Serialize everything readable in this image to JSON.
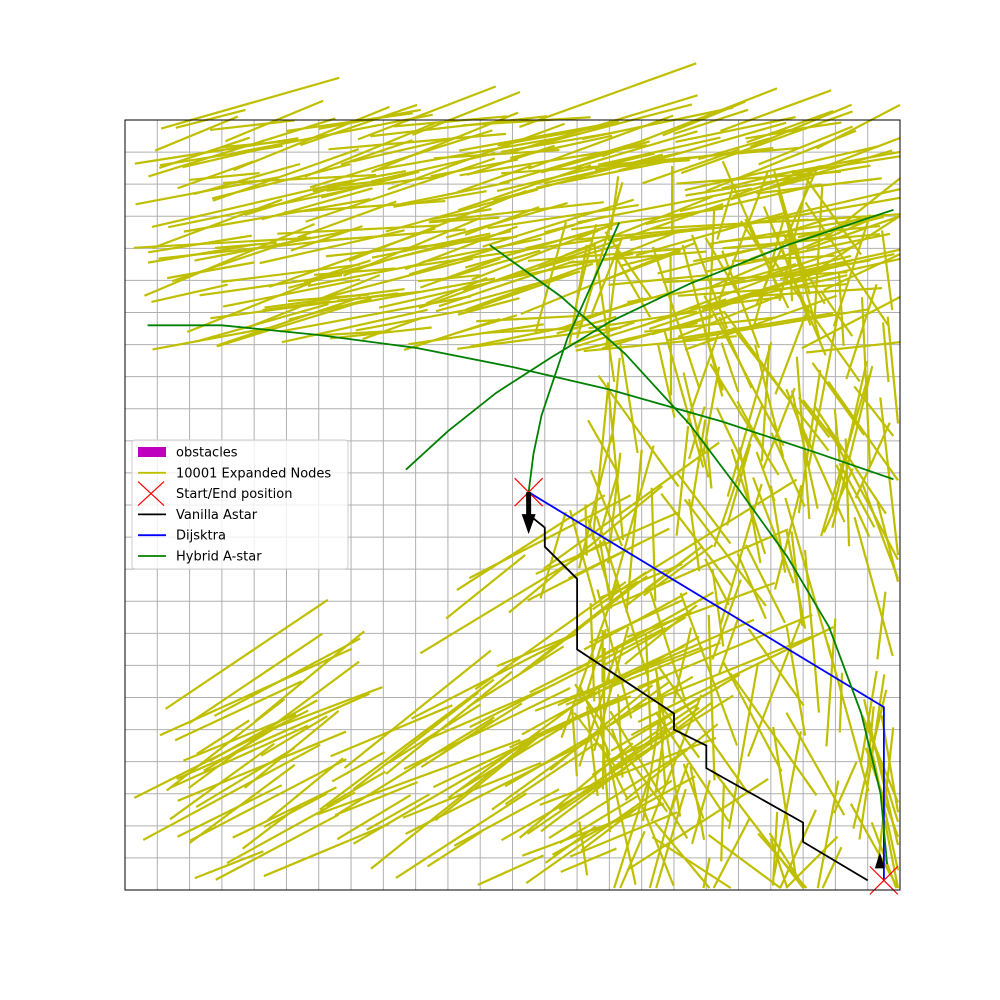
{
  "chart_data": {
    "type": "line",
    "title": "",
    "xlabel": "",
    "ylabel": "",
    "xlim": [
      0,
      24
    ],
    "ylim": [
      0,
      24
    ],
    "grid": true,
    "grid_step": 1,
    "legend_position": "center-left",
    "colors": {
      "obstacles": "#bf00bf",
      "expanded": "#bfbf00",
      "start_end": "#ff0000",
      "vanilla": "#000000",
      "dijkstra": "#0000ff",
      "hybrid": "#008000"
    },
    "start_end_points": [
      [
        12.5,
        12.4
      ],
      [
        23.5,
        0.3
      ]
    ],
    "series": [
      {
        "name": "Vanilla Astar",
        "x": [
          12.5,
          12.5,
          13.0,
          13.0,
          14.0,
          14.0,
          17.0,
          17.0,
          18.0,
          18.0,
          21.0,
          21.0,
          23.0
        ],
        "y": [
          12.4,
          11.7,
          11.3,
          10.7,
          9.7,
          7.5,
          5.5,
          5.0,
          4.5,
          3.8,
          2.1,
          1.5,
          0.3
        ]
      },
      {
        "name": "Dijsktra",
        "x": [
          12.5,
          23.5,
          23.5
        ],
        "y": [
          12.4,
          5.7,
          0.3
        ]
      },
      {
        "name": "Hybrid A-star",
        "x": [
          12.5,
          12.65,
          12.9,
          13.3,
          13.7,
          14.2,
          15.3
        ],
        "y": [
          12.4,
          13.6,
          14.8,
          16.0,
          17.2,
          18.3,
          20.8
        ]
      },
      {
        "name": "Hybrid A-star",
        "x": [
          8.7,
          10.0,
          11.5,
          13.2,
          15.0,
          17.5,
          20.5,
          23.8
        ],
        "y": [
          13.1,
          14.3,
          15.5,
          16.6,
          17.7,
          18.9,
          20.1,
          21.2
        ]
      },
      {
        "name": "Hybrid A-star",
        "x": [
          0.7,
          3.0,
          6.0,
          9.0,
          12.0,
          15.0,
          18.5,
          21.5,
          23.8
        ],
        "y": [
          17.6,
          17.6,
          17.3,
          16.9,
          16.3,
          15.6,
          14.6,
          13.6,
          12.8
        ]
      },
      {
        "name": "Hybrid A-star",
        "x": [
          11.3,
          13.5,
          15.5,
          17.5,
          19.0,
          20.5,
          21.8,
          22.8,
          23.4,
          23.6
        ],
        "y": [
          20.1,
          18.5,
          16.7,
          14.5,
          12.5,
          10.4,
          8.2,
          5.5,
          3.0,
          0.8
        ]
      }
    ]
  },
  "legend": {
    "items": [
      {
        "label": "obstacles",
        "kind": "patch",
        "color": "#bf00bf"
      },
      {
        "label": "10001 Expanded Nodes",
        "kind": "line",
        "color": "#bfbf00"
      },
      {
        "label": "Start/End position",
        "kind": "x",
        "color": "#ff0000"
      },
      {
        "label": "Vanilla Astar",
        "kind": "line",
        "color": "#000000"
      },
      {
        "label": "Dijsktra",
        "kind": "line",
        "color": "#0000ff"
      },
      {
        "label": "Hybrid A-star",
        "kind": "line",
        "color": "#008000"
      }
    ]
  }
}
